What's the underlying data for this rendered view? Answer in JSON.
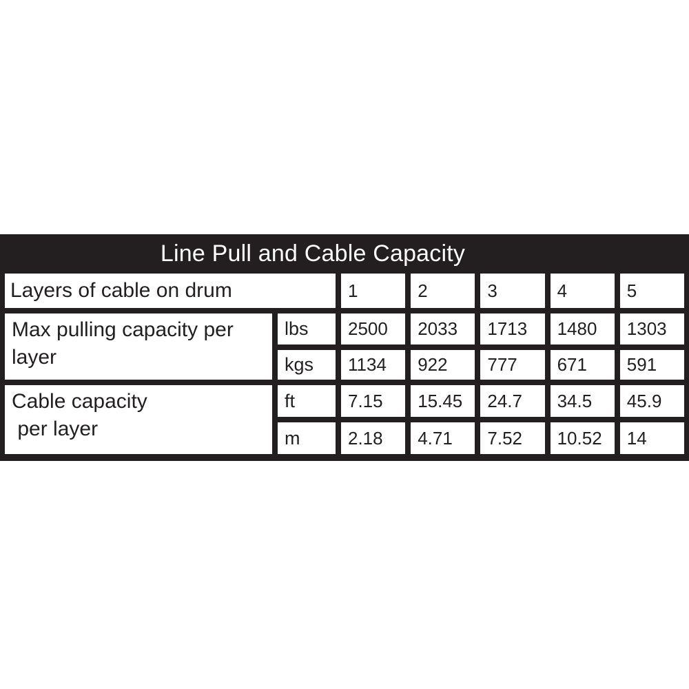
{
  "table": {
    "title": "Line Pull and Cable Capacity",
    "layers_row": {
      "label": "Layers of cable on drum",
      "values": [
        "1",
        "2",
        "3",
        "4",
        "5"
      ]
    },
    "sections": [
      {
        "label": "Max pulling capacity per\nlayer",
        "rows": [
          {
            "unit": "lbs",
            "values": [
              "2500",
              "2033",
              "1713",
              "1480",
              "1303"
            ]
          },
          {
            "unit": "kgs",
            "values": [
              "1134",
              "922",
              "777",
              "671",
              "591"
            ]
          }
        ]
      },
      {
        "label": "Cable capacity\n per layer",
        "rows": [
          {
            "unit": "ft",
            "values": [
              "7.15",
              "15.45",
              "24.7",
              "34.5",
              "45.9"
            ]
          },
          {
            "unit": "m",
            "values": [
              "2.18",
              "4.71",
              "7.52",
              "10.52",
              "14"
            ]
          }
        ]
      }
    ],
    "colors": {
      "table_black": "#231f20",
      "cell_background": "#ffffff",
      "title_text": "#ffffff",
      "cell_text": "#231f20"
    }
  }
}
